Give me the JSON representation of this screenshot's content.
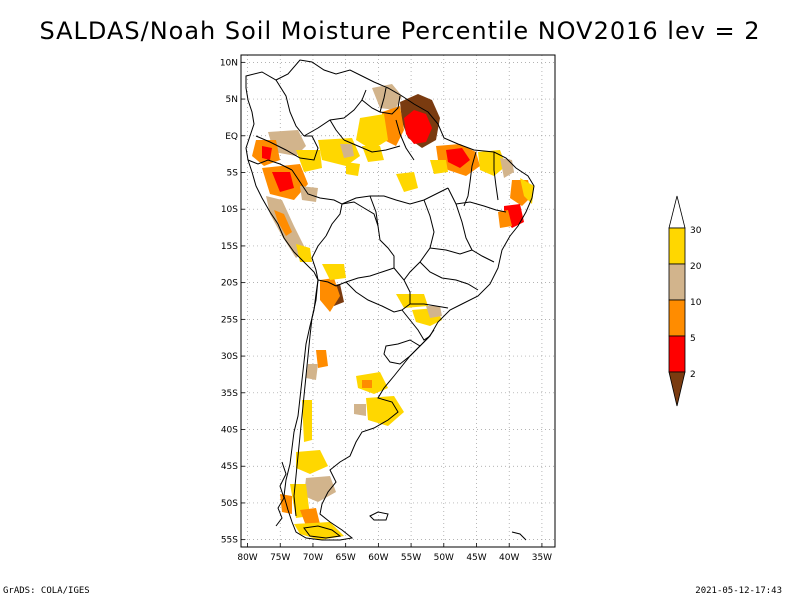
{
  "title": "SALDAS/Noah Soil Moisture Percentile NOV2016 lev = 2",
  "footer": {
    "left": "GrADS: COLA/IGES",
    "right": "2021-05-12-17:43"
  },
  "map": {
    "lat_range": [
      -56,
      11
    ],
    "lon_range": [
      -81,
      -33
    ],
    "lat_ticks": [
      {
        "value": 10,
        "label": "10N"
      },
      {
        "value": 5,
        "label": "5N"
      },
      {
        "value": 0,
        "label": "EQ"
      },
      {
        "value": -5,
        "label": "5S"
      },
      {
        "value": -10,
        "label": "10S"
      },
      {
        "value": -15,
        "label": "15S"
      },
      {
        "value": -20,
        "label": "20S"
      },
      {
        "value": -25,
        "label": "25S"
      },
      {
        "value": -30,
        "label": "30S"
      },
      {
        "value": -35,
        "label": "35S"
      },
      {
        "value": -40,
        "label": "40S"
      },
      {
        "value": -45,
        "label": "45S"
      },
      {
        "value": -50,
        "label": "50S"
      },
      {
        "value": -55,
        "label": "55S"
      }
    ],
    "lon_ticks": [
      {
        "value": -80,
        "label": "80W"
      },
      {
        "value": -75,
        "label": "75W"
      },
      {
        "value": -70,
        "label": "70W"
      },
      {
        "value": -65,
        "label": "65W"
      },
      {
        "value": -60,
        "label": "60W"
      },
      {
        "value": -55,
        "label": "55W"
      },
      {
        "value": -50,
        "label": "50W"
      },
      {
        "value": -45,
        "label": "45W"
      },
      {
        "value": -40,
        "label": "40W"
      },
      {
        "value": -35,
        "label": "35W"
      }
    ],
    "grid": "dotted"
  },
  "colorbar": {
    "orientation": "vertical",
    "placement": "right",
    "bins": [
      {
        "color": "#7a3b10",
        "label": ""
      },
      {
        "color": "#ff0000",
        "label": "2"
      },
      {
        "color": "#ff8c00",
        "label": "5"
      },
      {
        "color": "#d2b48c",
        "label": "10"
      },
      {
        "color": "#ffd700",
        "label": "20"
      },
      {
        "color": "#ffffff",
        "label": "30"
      }
    ]
  }
}
